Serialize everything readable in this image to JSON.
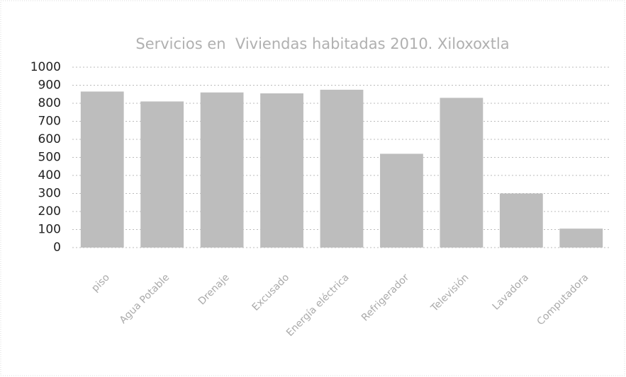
{
  "chart_data": {
    "type": "bar",
    "title": "Servicios en  Viviendas habitadas 2010. Xiloxoxtla",
    "categories": [
      "piso",
      "Agua Potable",
      "Drenaje",
      "Excusado",
      "Energía eléctrica",
      "Refrigerador",
      "Televisión",
      "Lavadora",
      "Computadora"
    ],
    "values": [
      865,
      810,
      860,
      855,
      875,
      520,
      830,
      300,
      105
    ],
    "color": "#bdbdbd",
    "ylim": [
      0,
      1000
    ],
    "yticks": [
      0,
      100,
      200,
      300,
      400,
      500,
      600,
      700,
      800,
      900,
      1000
    ],
    "grid": true
  }
}
